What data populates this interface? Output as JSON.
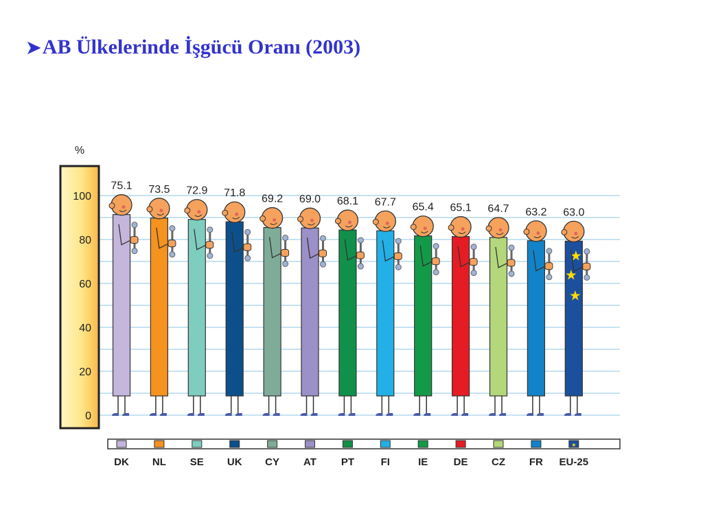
{
  "title": "AB Ülkelerinde İşgücü Oranı (2003)",
  "chart_data": {
    "type": "bar",
    "title": "AB Ülkelerinde İşgücü Oranı (2003)",
    "ylabel": "%",
    "ylim": [
      0,
      100
    ],
    "yticks": [
      "0",
      "20",
      "40",
      "60",
      "80",
      "100"
    ],
    "grid": true,
    "categories": [
      "DK",
      "NL",
      "SE",
      "UK",
      "CY",
      "AT",
      "PT",
      "FI",
      "IE",
      "DE",
      "CZ",
      "FR",
      "EU-25"
    ],
    "values": [
      75.1,
      73.5,
      72.9,
      71.8,
      69.2,
      69.0,
      68.1,
      67.7,
      65.4,
      65.1,
      64.7,
      63.2,
      63.0
    ],
    "value_labels": [
      "75.1",
      "73.5",
      "72.9",
      "71.8",
      "69.2",
      "69.0",
      "68.1",
      "67.7",
      "65.4",
      "65.1",
      "64.7",
      "63.2",
      "63.0"
    ],
    "colors": [
      "#c5b6dc",
      "#f6921e",
      "#7fcdbf",
      "#0d4f8b",
      "#7fac98",
      "#9c90c8",
      "#10904a",
      "#22b0e6",
      "#139a48",
      "#e51c23",
      "#b3d77a",
      "#1283c8",
      "#1c4f9c"
    ]
  }
}
